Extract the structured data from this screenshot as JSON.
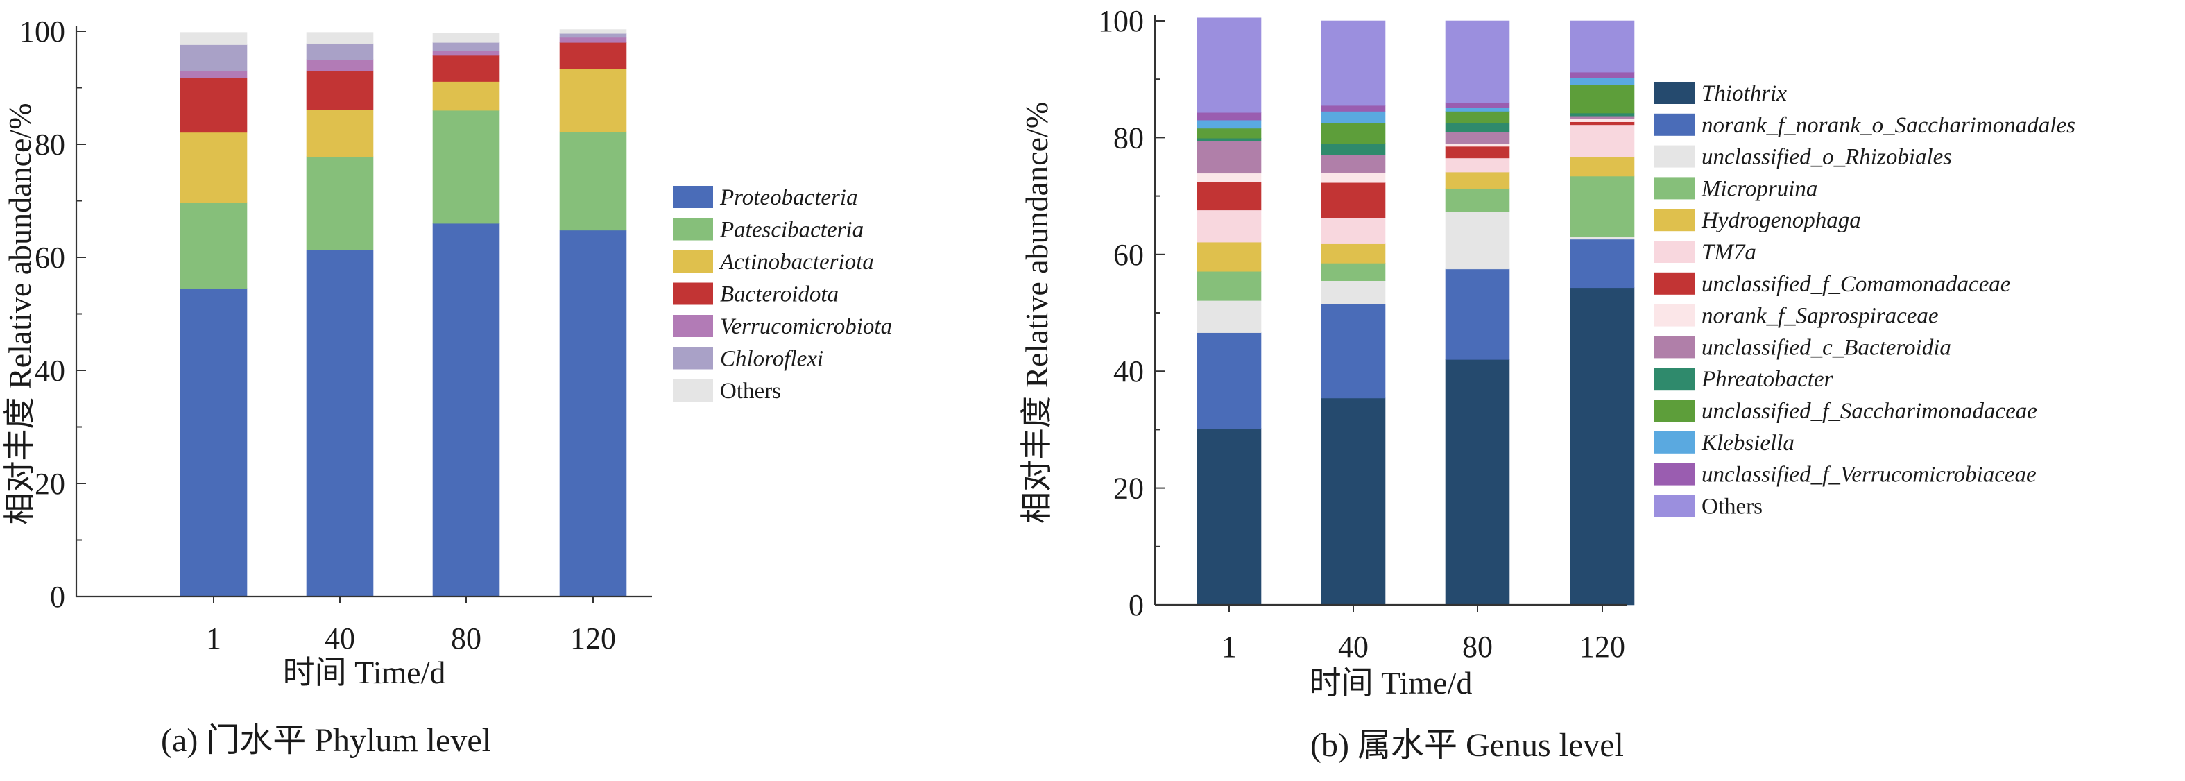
{
  "figure": {
    "panels": [
      {
        "caption": "(a) 门水平 Phylum level",
        "xlabel": "时间 Time/d",
        "ylabel": "相对丰度 Relative abundance/%"
      },
      {
        "caption": "(b) 属水平 Genus level",
        "xlabel": "时间 Time/d",
        "ylabel": "相对丰度 Relative abundance/%"
      }
    ]
  },
  "chart_data": [
    {
      "type": "bar",
      "stacked": true,
      "categories": [
        "1",
        "40",
        "80",
        "120"
      ],
      "title": "",
      "caption": "(a) 门水平 Phylum level",
      "xlabel": "时间 Time/d",
      "ylabel": "相对丰度 Relative abundance/%",
      "ylim": [
        0,
        100
      ],
      "yticks": [
        0,
        20,
        40,
        60,
        80,
        100
      ],
      "grid": false,
      "legend_position": "right",
      "series": [
        {
          "name": "Proteobacteria",
          "italic": true,
          "color": "#4a6cb8",
          "values": [
            54.5,
            61.3,
            66.0,
            64.8
          ]
        },
        {
          "name": "Patescibacteria",
          "italic": true,
          "color": "#86bf7a",
          "values": [
            15.2,
            16.5,
            20.0,
            17.4
          ]
        },
        {
          "name": "Actinobacteriota",
          "italic": true,
          "color": "#dfc04d",
          "values": [
            12.4,
            8.3,
            5.1,
            11.2
          ]
        },
        {
          "name": "Bacteroidota",
          "italic": true,
          "color": "#c23434",
          "values": [
            9.6,
            6.9,
            4.6,
            4.6
          ]
        },
        {
          "name": "Verrucomicrobiota",
          "italic": true,
          "color": "#b27bb6",
          "values": [
            1.3,
            2.0,
            0.8,
            0.9
          ]
        },
        {
          "name": "Chloroflexi",
          "italic": true,
          "color": "#a9a1c7",
          "values": [
            4.6,
            2.8,
            1.5,
            0.7
          ]
        },
        {
          "name": "Others",
          "italic": false,
          "color": "#e5e5e5",
          "values": [
            2.2,
            2.0,
            1.6,
            0.7
          ]
        }
      ]
    },
    {
      "type": "bar",
      "stacked": true,
      "categories": [
        "1",
        "40",
        "80",
        "120"
      ],
      "title": "",
      "caption": "(b) 属水平 Genus level",
      "xlabel": "时间 Time/d",
      "ylabel": "相对丰度 Relative abundance/%",
      "ylim": [
        0,
        100
      ],
      "yticks": [
        0,
        20,
        40,
        60,
        80,
        100
      ],
      "grid": false,
      "legend_position": "right",
      "series": [
        {
          "name": "Thiothrix",
          "italic": true,
          "color": "#254a6e",
          "values": [
            30.2,
            35.4,
            42.0,
            54.3
          ]
        },
        {
          "name": "norank_f_norank_o_Saccharimonadales",
          "italic": true,
          "color": "#4a6cb8",
          "values": [
            16.4,
            16.1,
            15.5,
            8.3
          ]
        },
        {
          "name": "unclassified_o_Rhizobiales",
          "italic": true,
          "color": "#e5e5e5",
          "values": [
            5.5,
            4.0,
            9.8,
            0.5
          ]
        },
        {
          "name": "Micropruina",
          "italic": true,
          "color": "#86bf7a",
          "values": [
            5.0,
            3.0,
            4.0,
            10.3
          ]
        },
        {
          "name": "Hydrogenophaga",
          "italic": true,
          "color": "#dfc04d",
          "values": [
            5.0,
            3.3,
            2.8,
            3.3
          ]
        },
        {
          "name": "TM7a",
          "italic": true,
          "color": "#f8d7de",
          "values": [
            5.5,
            4.5,
            2.4,
            5.5
          ]
        },
        {
          "name": "unclassified_f_Comamonadaceae",
          "italic": true,
          "color": "#c23434",
          "values": [
            4.8,
            6.0,
            2.0,
            0.5
          ]
        },
        {
          "name": "norank_f_Saprospiraceae",
          "italic": true,
          "color": "#fbe6e8",
          "values": [
            1.5,
            1.7,
            0.5,
            0.5
          ]
        },
        {
          "name": "unclassified_c_Bacteroidia",
          "italic": true,
          "color": "#b07fa9",
          "values": [
            5.5,
            3.0,
            2.0,
            0.5
          ]
        },
        {
          "name": "Phreatobacter",
          "italic": true,
          "color": "#2f8a6c",
          "values": [
            0.5,
            2.0,
            1.5,
            0.5
          ]
        },
        {
          "name": "unclassified_f_Saccharimonadaceae",
          "italic": true,
          "color": "#5d9e3a",
          "values": [
            1.7,
            3.5,
            2.0,
            4.8
          ]
        },
        {
          "name": "Klebsiella",
          "italic": true,
          "color": "#5aa9e0",
          "values": [
            1.4,
            2.0,
            0.6,
            1.2
          ]
        },
        {
          "name": "unclassified_f_Verrucomicrobiaceae",
          "italic": true,
          "color": "#9a5db0",
          "values": [
            1.3,
            1.0,
            0.9,
            1.0
          ]
        },
        {
          "name": "Others",
          "italic": false,
          "color": "#9b8fde",
          "values": [
            16.2,
            14.5,
            14.0,
            8.8
          ]
        }
      ]
    }
  ]
}
